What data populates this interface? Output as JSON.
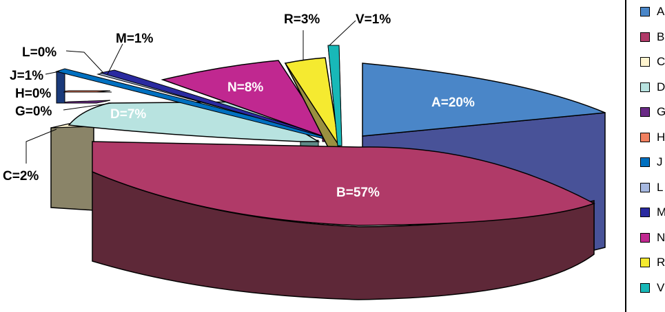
{
  "chart_data": {
    "type": "pie",
    "title": "",
    "style": "3d-exploded",
    "slices": [
      {
        "key": "A",
        "label": "A=20%",
        "value": 20,
        "color": "#4a86c8"
      },
      {
        "key": "B",
        "label": "B=57%",
        "value": 57,
        "color": "#b03a68"
      },
      {
        "key": "C",
        "label": "C=2%",
        "value": 2,
        "color": "#fff5d0"
      },
      {
        "key": "D",
        "label": "D=7%",
        "value": 7,
        "color": "#b8e3e0"
      },
      {
        "key": "G",
        "label": "G=0%",
        "value": 0,
        "color": "#6a2a86"
      },
      {
        "key": "H",
        "label": "H=0%",
        "value": 0,
        "color": "#f08060"
      },
      {
        "key": "J",
        "label": "J=1%",
        "value": 1,
        "color": "#0070c0"
      },
      {
        "key": "L",
        "label": "L=0%",
        "value": 0,
        "color": "#a6b8e0"
      },
      {
        "key": "M",
        "label": "M=1%",
        "value": 1,
        "color": "#2a2aa0"
      },
      {
        "key": "N",
        "label": "N=8%",
        "value": 8,
        "color": "#c02890"
      },
      {
        "key": "R",
        "label": "R=3%",
        "value": 3,
        "color": "#f5ea30"
      },
      {
        "key": "V",
        "label": "V=1%",
        "value": 1,
        "color": "#18b8b8"
      }
    ],
    "legend": {
      "placement": "right",
      "entries": [
        "A",
        "B",
        "C",
        "D",
        "G",
        "H",
        "J",
        "L",
        "M",
        "N",
        "R",
        "V"
      ]
    }
  }
}
